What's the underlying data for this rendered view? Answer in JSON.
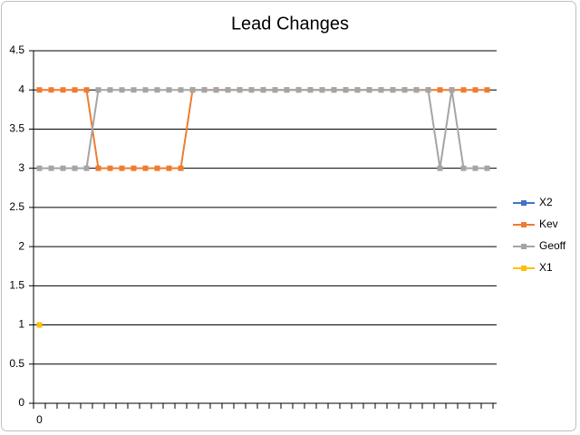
{
  "chart_data": {
    "type": "line",
    "title": "Lead Changes",
    "categories": [
      "0",
      null,
      null,
      null,
      null,
      null,
      null,
      null,
      null,
      null,
      null,
      null,
      null,
      null,
      null,
      null,
      null,
      null,
      null,
      null,
      null,
      null,
      null,
      null,
      null,
      null,
      null,
      null,
      null,
      null,
      null,
      null,
      null,
      null,
      null,
      null,
      null,
      null,
      null
    ],
    "series": [
      {
        "name": "X2",
        "color": "#4472c4",
        "values": [
          null,
          null,
          null,
          null,
          null,
          null,
          null,
          null,
          null,
          null,
          null,
          null,
          null,
          null,
          null,
          null,
          null,
          null,
          null,
          null,
          null,
          null,
          null,
          null,
          null,
          null,
          null,
          null,
          null,
          null,
          null,
          null,
          null,
          null,
          null,
          null,
          null,
          null,
          null
        ]
      },
      {
        "name": "Kev",
        "color": "#ed7d31",
        "values": [
          4,
          4,
          4,
          4,
          4,
          3,
          3,
          3,
          3,
          3,
          3,
          3,
          3,
          4,
          4,
          4,
          4,
          4,
          4,
          4,
          4,
          4,
          4,
          4,
          4,
          4,
          4,
          4,
          4,
          4,
          4,
          4,
          4,
          4,
          4,
          4,
          4,
          4,
          4
        ]
      },
      {
        "name": "Geoff",
        "color": "#a5a5a5",
        "values": [
          3,
          3,
          3,
          3,
          3,
          4,
          4,
          4,
          4,
          4,
          4,
          4,
          4,
          4,
          4,
          4,
          4,
          4,
          4,
          4,
          4,
          4,
          4,
          4,
          4,
          4,
          4,
          4,
          4,
          4,
          4,
          4,
          4,
          4,
          3,
          4,
          3,
          3,
          3
        ]
      },
      {
        "name": "X1",
        "color": "#ffc000",
        "values": [
          1,
          null,
          null,
          null,
          null,
          null,
          null,
          null,
          null,
          null,
          null,
          null,
          null,
          null,
          null,
          null,
          null,
          null,
          null,
          null,
          null,
          null,
          null,
          null,
          null,
          null,
          null,
          null,
          null,
          null,
          null,
          null,
          null,
          null,
          null,
          null,
          null,
          null,
          null
        ]
      }
    ],
    "ylim": [
      0,
      4.5
    ],
    "yticks": [
      0,
      0.5,
      1,
      1.5,
      2,
      2.5,
      3,
      3.5,
      4,
      4.5
    ],
    "grid": true,
    "legend": "right"
  }
}
